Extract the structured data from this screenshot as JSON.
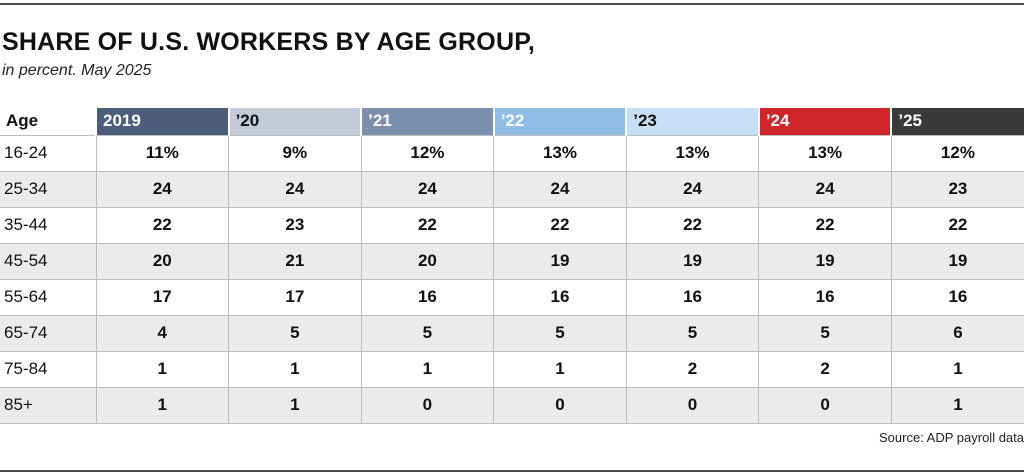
{
  "title": "SHARE OF U.S. WORKERS BY AGE GROUP,",
  "subtitle": "in percent. May 2025",
  "source": "Source: ADP payroll data",
  "chart_data": {
    "type": "table",
    "title": "SHARE OF U.S. WORKERS BY AGE GROUP,",
    "subtitle": "in percent. May 2025",
    "row_header_label": "Age",
    "columns": [
      {
        "label": "2019",
        "bg": "#4b5d78",
        "fg": "#ffffff"
      },
      {
        "label": "’20",
        "bg": "#c3cad8",
        "fg": "#111111"
      },
      {
        "label": "’21",
        "bg": "#7d8fae",
        "fg": "#ffffff"
      },
      {
        "label": "’22",
        "bg": "#8fbde6",
        "fg": "#ffffff"
      },
      {
        "label": "’23",
        "bg": "#c6dff4",
        "fg": "#111111"
      },
      {
        "label": "’24",
        "bg": "#d0262b",
        "fg": "#ffffff"
      },
      {
        "label": "’25",
        "bg": "#3a3a3a",
        "fg": "#ffffff"
      }
    ],
    "rows": [
      {
        "age": "16-24",
        "cells": [
          "11%",
          "9%",
          "12%",
          "13%",
          "13%",
          "13%",
          "12%"
        ]
      },
      {
        "age": "25-34",
        "cells": [
          "24",
          "24",
          "24",
          "24",
          "24",
          "24",
          "23"
        ]
      },
      {
        "age": "35-44",
        "cells": [
          "22",
          "23",
          "22",
          "22",
          "22",
          "22",
          "22"
        ]
      },
      {
        "age": "45-54",
        "cells": [
          "20",
          "21",
          "20",
          "19",
          "19",
          "19",
          "19"
        ]
      },
      {
        "age": "55-64",
        "cells": [
          "17",
          "17",
          "16",
          "16",
          "16",
          "16",
          "16"
        ]
      },
      {
        "age": "65-74",
        "cells": [
          "4",
          "5",
          "5",
          "5",
          "5",
          "5",
          "6"
        ]
      },
      {
        "age": "75-84",
        "cells": [
          "1",
          "1",
          "1",
          "1",
          "2",
          "2",
          "1"
        ]
      },
      {
        "age": "85+",
        "cells": [
          "1",
          "1",
          "0",
          "0",
          "0",
          "0",
          "1"
        ]
      }
    ]
  }
}
